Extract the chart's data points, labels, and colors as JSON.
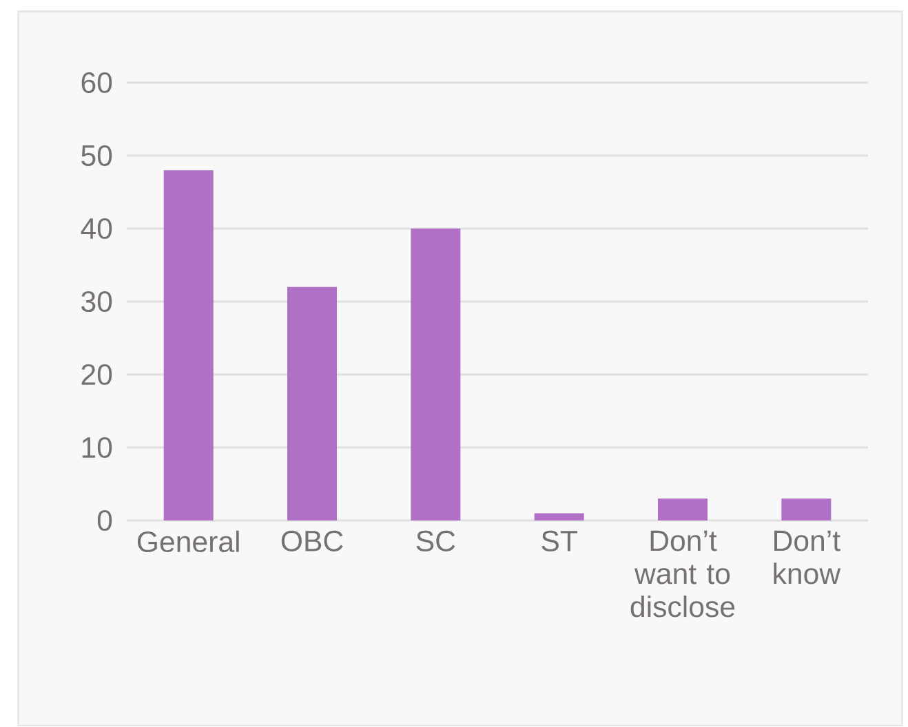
{
  "chart_data": {
    "type": "bar",
    "categories": [
      "General",
      "OBC",
      "SC",
      "ST",
      "Don’t want to disclose",
      "Don’t know"
    ],
    "values": [
      48,
      32,
      40,
      1,
      3,
      3
    ],
    "color": "#b070c6",
    "ylim": [
      0,
      60
    ],
    "yticks": [
      0,
      10,
      20,
      30,
      40,
      50,
      60
    ],
    "grid": "y"
  }
}
